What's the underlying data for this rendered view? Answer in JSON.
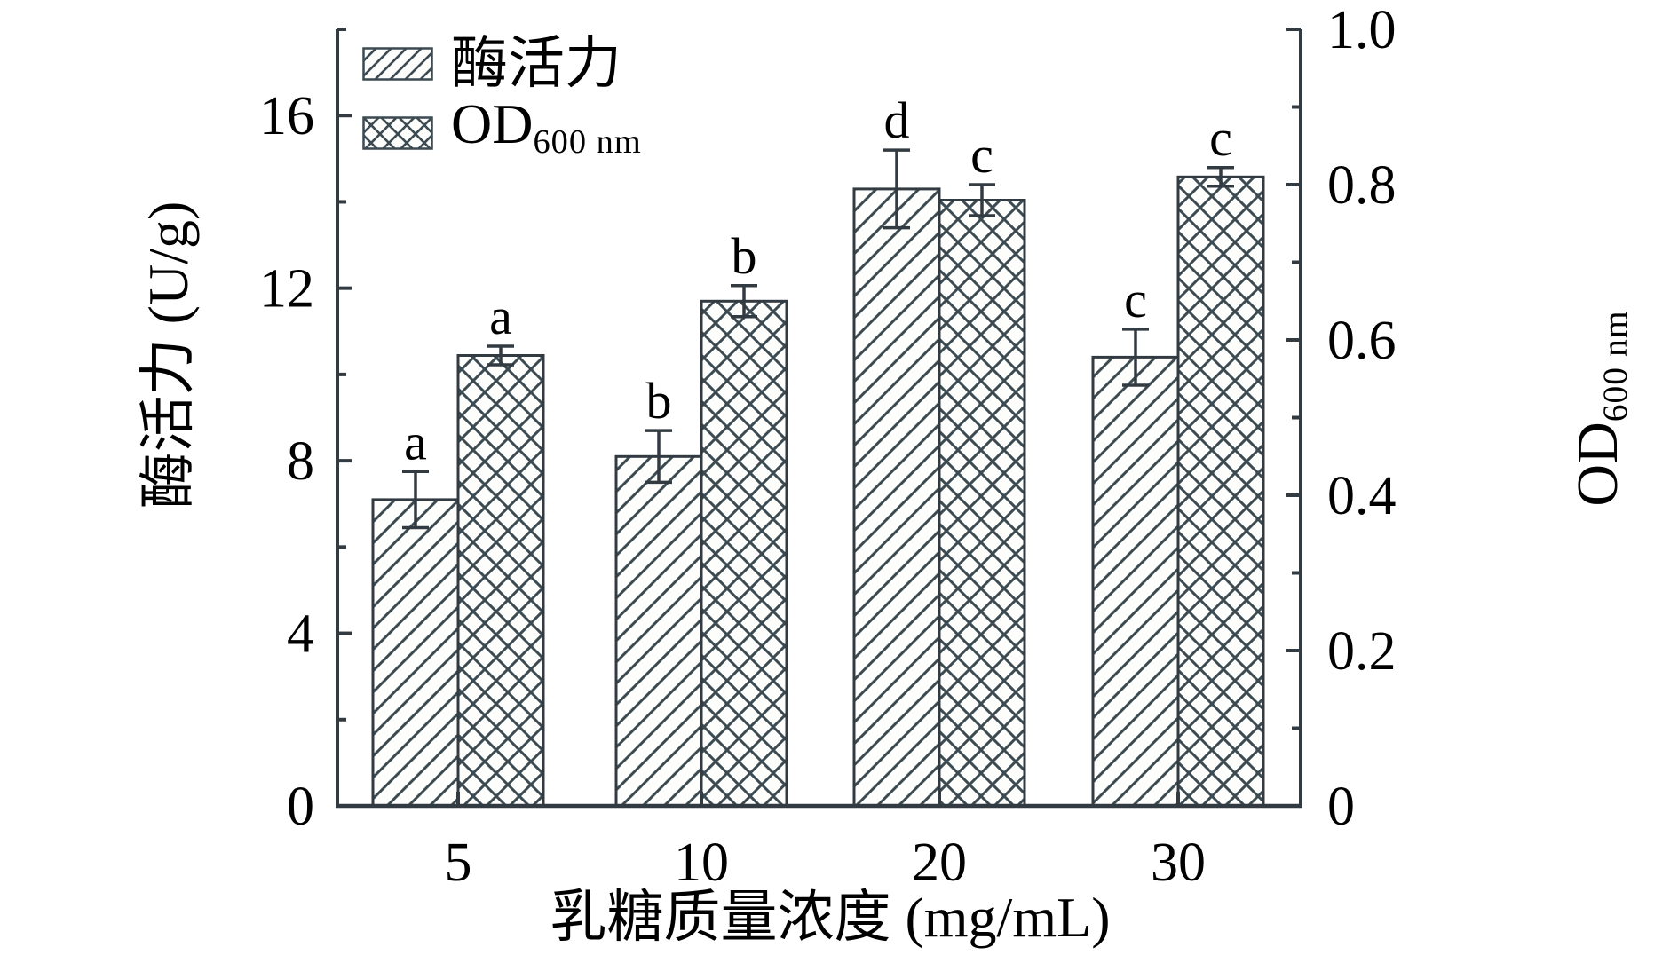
{
  "chart_data": {
    "type": "bar",
    "title": "",
    "categories": [
      "5",
      "10",
      "20",
      "30"
    ],
    "xlabel": "乳糖质量浓度 (mg/mL)",
    "ylabel_left": "酶活力 (U/g)",
    "ylabel_right_main": "OD",
    "ylabel_right_sub": "600 nm",
    "series": [
      {
        "name": "酶活力",
        "axis": "left",
        "pattern": "diagonal-hatch",
        "values": [
          7.1,
          8.1,
          14.3,
          10.4
        ],
        "errors": [
          0.65,
          0.6,
          0.9,
          0.65
        ],
        "letters": [
          "a",
          "b",
          "d",
          "c"
        ]
      },
      {
        "name": "OD",
        "name_sub": "600 nm",
        "axis": "right",
        "pattern": "crosshatch",
        "values": [
          0.58,
          0.65,
          0.78,
          0.81
        ],
        "errors": [
          0.012,
          0.02,
          0.02,
          0.012
        ],
        "letters": [
          "a",
          "b",
          "c",
          "c"
        ]
      }
    ],
    "axes": {
      "left": {
        "min": 0,
        "max": 18,
        "major_ticks": [
          0,
          4,
          8,
          12,
          16
        ],
        "minor_ticks": [
          2,
          6,
          10,
          14,
          18
        ],
        "tick_labels": [
          "0",
          "4",
          "8",
          "12",
          "16"
        ]
      },
      "right": {
        "min": 0,
        "max": 1.0,
        "major_ticks": [
          0,
          0.2,
          0.4,
          0.6,
          0.8,
          1.0
        ],
        "minor_ticks": [
          0.1,
          0.3,
          0.5,
          0.7,
          0.9
        ],
        "tick_labels": [
          "0",
          "0.2",
          "0.4",
          "0.6",
          "0.8",
          "1.0"
        ]
      }
    },
    "legend": {
      "position": "top-left",
      "items": [
        {
          "label": "酶活力",
          "pattern": "diagonal-hatch"
        },
        {
          "label_main": "OD",
          "label_sub": "600 nm",
          "pattern": "crosshatch"
        }
      ]
    },
    "grid": "off",
    "colors": {
      "axis": "#333b42",
      "hatch": "#3c4a52",
      "bar_fill": "#fdfdfc",
      "text": "#000000"
    }
  }
}
